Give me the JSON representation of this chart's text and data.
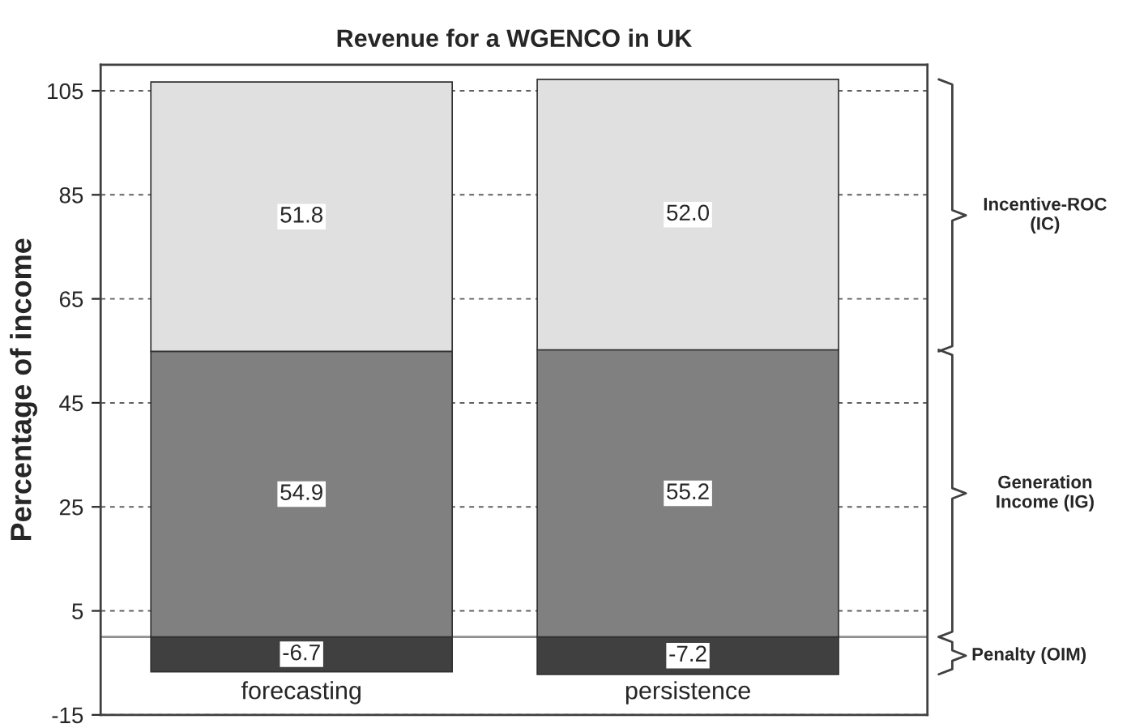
{
  "chart_data": {
    "type": "bar",
    "title": "Revenue for a WGENCO in UK",
    "ylabel": "Percentage of income",
    "categories": [
      "forecasting",
      "persistence"
    ],
    "stacked": true,
    "series": [
      {
        "name": "Penalty (OIM)",
        "color": "#404040",
        "values": [
          -6.7,
          -7.2
        ],
        "value_labels": [
          "-6.7",
          "-7.2"
        ]
      },
      {
        "name": "Generation\nIncome (IG)",
        "color": "#808080",
        "values": [
          54.9,
          55.2
        ],
        "value_labels": [
          "54.9",
          "55.2"
        ]
      },
      {
        "name": "Incentive-ROC\n(IC)",
        "color": "#e0e0e0",
        "values": [
          51.8,
          52.0
        ],
        "value_labels": [
          "51.8",
          "52.0"
        ]
      }
    ],
    "ylim": [
      -15,
      110
    ],
    "yticks": [
      -15,
      5,
      25,
      45,
      65,
      85,
      105
    ],
    "grid": "y",
    "ref_lines": [
      {
        "axis": "y",
        "value": 0,
        "color": "#909090"
      }
    ]
  }
}
